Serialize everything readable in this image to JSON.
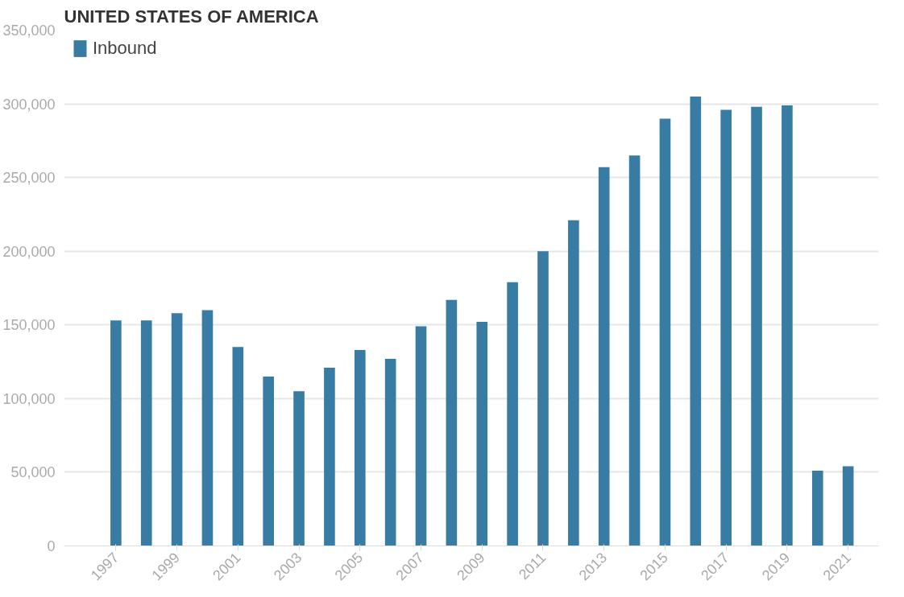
{
  "chart_data": {
    "type": "bar",
    "title": "UNITED STATES OF AMERICA",
    "x": [
      1997,
      1998,
      1999,
      2000,
      2001,
      2002,
      2003,
      2004,
      2005,
      2006,
      2007,
      2008,
      2009,
      2010,
      2011,
      2012,
      2013,
      2014,
      2015,
      2016,
      2017,
      2018,
      2019,
      2020,
      2021
    ],
    "series": [
      {
        "name": "Inbound",
        "color": "#387ca4",
        "values": [
          153000,
          153000,
          158000,
          160000,
          135000,
          115000,
          105000,
          121000,
          133000,
          127000,
          149000,
          167000,
          152000,
          179000,
          200000,
          221000,
          257000,
          265000,
          290000,
          305000,
          296000,
          298000,
          299000,
          51000,
          54000
        ]
      }
    ],
    "xlim": [
      1995.3,
      2022
    ],
    "xticks": [
      1997,
      1999,
      2001,
      2003,
      2005,
      2007,
      2009,
      2011,
      2013,
      2015,
      2017,
      2019,
      2021
    ],
    "ylim": [
      0,
      350000
    ],
    "yticks": [
      {
        "value": 0,
        "label": "0"
      },
      {
        "value": 50000,
        "label": "50,000"
      },
      {
        "value": 100000,
        "label": "100,000"
      },
      {
        "value": 150000,
        "label": "150,000"
      },
      {
        "value": 200000,
        "label": "200,000"
      },
      {
        "value": 250000,
        "label": "250,000"
      },
      {
        "value": 300000,
        "label": "300,000"
      },
      {
        "value": 350000,
        "label": "350,000"
      }
    ],
    "grid": "y",
    "legend": "top left"
  }
}
